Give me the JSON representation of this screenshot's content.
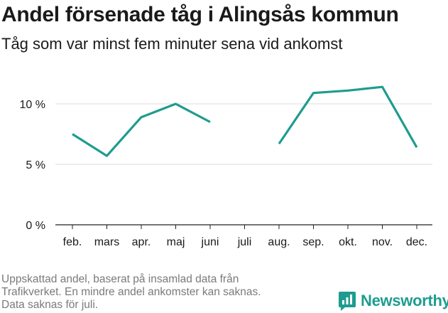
{
  "title": "Andel försenade tåg i Alingsås kommun",
  "subtitle": "Tåg som var minst fem minuter sena vid ankomst",
  "footnote": [
    "Uppskattad andel, baserat på insamlad data från",
    "Trafikverket. En mindre andel ankomster kan saknas.",
    "Data saknas för juli."
  ],
  "brand": {
    "name": "Newsworthy",
    "icon": "newsworthy-logo-icon",
    "color": "#1e9c8f"
  },
  "chart_data": {
    "type": "line",
    "categories": [
      "feb.",
      "mars",
      "apr.",
      "maj",
      "juni",
      "juli",
      "aug.",
      "sep.",
      "okt.",
      "nov.",
      "dec."
    ],
    "series": [
      {
        "values": [
          7.5,
          5.7,
          8.9,
          10.0,
          8.5,
          null,
          6.7,
          10.9,
          11.1,
          11.4,
          6.4
        ],
        "color": "#1e9c8f"
      }
    ],
    "yticks": [
      {
        "value": 0,
        "label": "0 %"
      },
      {
        "value": 5,
        "label": "5 %"
      },
      {
        "value": 10,
        "label": "10 %"
      }
    ],
    "ylim": [
      0,
      12
    ],
    "grid": true,
    "xlabel": "",
    "ylabel": ""
  }
}
